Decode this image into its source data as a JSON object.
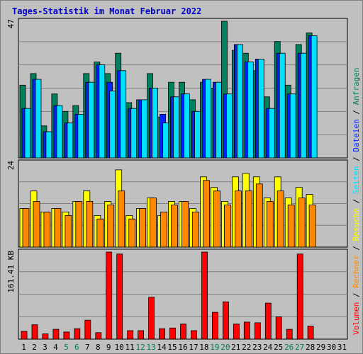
{
  "title": "Tages-Statistik im Monat Februar 2022",
  "colors": {
    "anfragen": "#00805c",
    "dateien": "#0022ff",
    "seiten": "#00e0ff",
    "besuche": "#ffff00",
    "rechner": "#ff8800",
    "volumen": "#ff0000",
    "separator": "#000000",
    "weekend_day": "#00805c",
    "weekday_day": "#000000",
    "plot_bg": "#c0c0c0",
    "grid": "#808080"
  },
  "right_label": [
    {
      "text": "Volumen",
      "key": "volumen"
    },
    {
      "text": " / ",
      "key": "separator"
    },
    {
      "text": "Rechner",
      "key": "rechner"
    },
    {
      "text": " / ",
      "key": "separator"
    },
    {
      "text": "Besuche",
      "key": "besuche"
    },
    {
      "text": " / ",
      "key": "separator"
    },
    {
      "text": "Seiten",
      "key": "seiten"
    },
    {
      "text": " / ",
      "key": "separator"
    },
    {
      "text": "Dateien",
      "key": "dateien"
    },
    {
      "text": " / ",
      "key": "separator"
    },
    {
      "text": "Anfragen",
      "key": "anfragen"
    }
  ],
  "chart_data": [
    {
      "type": "bar",
      "title": "Tages-Statistik im Monat Februar 2022",
      "ymax_label": "47",
      "ylim": [
        0,
        47
      ],
      "categories": [
        "1",
        "2",
        "3",
        "4",
        "5",
        "6",
        "7",
        "8",
        "9",
        "10",
        "11",
        "12",
        "13",
        "14",
        "15",
        "16",
        "17",
        "18",
        "19",
        "20",
        "21",
        "22",
        "23",
        "24",
        "25",
        "26",
        "27",
        "28",
        "29",
        "30",
        "31"
      ],
      "weekend_days": [
        5,
        6,
        12,
        13,
        19,
        20,
        26,
        27
      ],
      "series": [
        {
          "name": "Anfragen",
          "values": [
            25,
            29,
            11,
            22,
            16,
            18,
            29,
            33,
            29,
            36,
            19,
            20,
            29,
            14,
            26,
            26,
            20,
            26,
            24,
            47,
            37,
            36,
            30,
            21,
            40,
            25,
            39,
            43,
            null,
            null,
            null
          ]
        },
        {
          "name": "Dateien",
          "values": [
            17,
            27,
            9,
            18,
            12,
            15,
            26,
            32,
            26,
            30,
            17,
            20,
            24,
            15,
            21,
            22,
            16,
            27,
            26,
            22,
            39,
            33,
            34,
            17,
            36,
            22,
            36,
            42,
            null,
            null,
            null
          ]
        },
        {
          "name": "Seiten",
          "values": [
            17,
            27,
            9,
            18,
            12,
            15,
            26,
            32,
            23,
            30,
            17,
            20,
            24,
            12,
            21,
            22,
            16,
            27,
            26,
            22,
            39,
            33,
            34,
            17,
            36,
            22,
            36,
            42,
            null,
            null,
            null
          ]
        }
      ]
    },
    {
      "type": "bar",
      "ymax_label": "24",
      "ylim": [
        0,
        24
      ],
      "categories": [
        "1",
        "2",
        "3",
        "4",
        "5",
        "6",
        "7",
        "8",
        "9",
        "10",
        "11",
        "12",
        "13",
        "14",
        "15",
        "16",
        "17",
        "18",
        "19",
        "20",
        "21",
        "22",
        "23",
        "24",
        "25",
        "26",
        "27",
        "28",
        "29",
        "30",
        "31"
      ],
      "series": [
        {
          "name": "Besuche",
          "values": [
            11,
            16,
            10,
            11,
            10,
            13,
            16,
            9,
            13,
            22,
            9,
            11,
            14,
            9,
            13,
            13,
            11,
            20,
            17,
            13,
            20,
            21,
            20,
            14,
            20,
            14,
            17,
            15,
            null,
            null,
            null
          ]
        },
        {
          "name": "Rechner",
          "values": [
            11,
            13,
            10,
            11,
            9,
            13,
            13,
            8,
            12,
            16,
            8,
            11,
            14,
            10,
            12,
            13,
            10,
            19,
            16,
            12,
            16,
            16,
            18,
            13,
            16,
            12,
            14,
            12,
            null,
            null,
            null
          ]
        }
      ]
    },
    {
      "type": "bar",
      "ymax_label": "161.41 KB",
      "ylim": [
        0,
        161.41
      ],
      "unit": "KB",
      "categories": [
        "1",
        "2",
        "3",
        "4",
        "5",
        "6",
        "7",
        "8",
        "9",
        "10",
        "11",
        "12",
        "13",
        "14",
        "15",
        "16",
        "17",
        "18",
        "19",
        "20",
        "21",
        "22",
        "23",
        "24",
        "25",
        "26",
        "27",
        "28",
        "29",
        "30",
        "31"
      ],
      "series": [
        {
          "name": "Volumen",
          "values": [
            14.5,
            26.7,
            9.7,
            18.2,
            13.3,
            19.4,
            35.2,
            12.1,
            161.4,
            157.8,
            15.8,
            15.8,
            77.7,
            19.4,
            20.6,
            27.9,
            15.8,
            161.4,
            49.8,
            69.2,
            27.9,
            31.6,
            30.3,
            66.8,
            41.3,
            18.2,
            157.8,
            24.3,
            null,
            null,
            null
          ]
        }
      ]
    }
  ]
}
